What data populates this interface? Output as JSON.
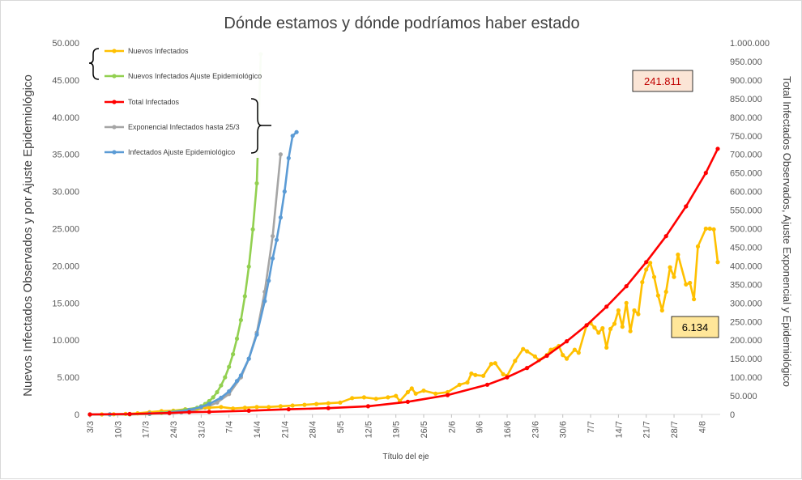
{
  "chart_data": {
    "type": "line",
    "title": "Dónde estamos y dónde podríamos haber estado",
    "xlabel": "Título del eje",
    "ylabel_left": "Nuevos Infectados Observados y por Ajuste Epidemiológico",
    "ylabel_right": "Total Infectados Observados, Ajuste Exponencial y Epidemiológico",
    "x_start": "3/3",
    "x_end": "8/8",
    "ylim_left": [
      0,
      50000
    ],
    "ylim_right": [
      0,
      1000000
    ],
    "yticks_left": [
      "0",
      "5.000",
      "10.000",
      "15.000",
      "20.000",
      "25.000",
      "30.000",
      "35.000",
      "40.000",
      "45.000",
      "50.000"
    ],
    "yticks_right": [
      "0",
      "50.000",
      "100.000",
      "150.000",
      "200.000",
      "250.000",
      "300.000",
      "350.000",
      "400.000",
      "450.000",
      "500.000",
      "550.000",
      "600.000",
      "650.000",
      "700.000",
      "750.000",
      "800.000",
      "850.000",
      "900.000",
      "950.000",
      "1.000.000"
    ],
    "xticks": [
      "3/3",
      "10/3",
      "17/3",
      "24/3",
      "31/3",
      "7/4",
      "14/4",
      "21/4",
      "28/4",
      "5/5",
      "12/5",
      "19/5",
      "26/5",
      "2/6",
      "9/6",
      "16/6",
      "23/6",
      "30/6",
      "7/7",
      "14/7",
      "21/7",
      "28/7",
      "4/8"
    ],
    "grid": false,
    "legend": [
      {
        "name": "Nuevos Infectados",
        "color": "#FFC000"
      },
      {
        "name": "Nuevos Infectados Ajuste Epidemiológico",
        "color": "#92D050"
      },
      {
        "name": "Total Infectados",
        "color": "#FF0000"
      },
      {
        "name": "Exponencial Infectados hasta 25/3",
        "color": "#A5A5A5"
      },
      {
        "name": "Infectados Ajuste Epidemiológico",
        "color": "#5B9BD5"
      }
    ],
    "annotations": [
      {
        "text": "241.811",
        "color": "#C00000",
        "background": "#FBE5D6"
      },
      {
        "text": "6.134",
        "color": "#000000",
        "background": "#FFE699"
      }
    ],
    "series": [
      {
        "name": "Nuevos Infectados",
        "axis": "left",
        "color": "#FFC000",
        "x": [
          0,
          3,
          6,
          9,
          12,
          15,
          18,
          21,
          24,
          27,
          30,
          33,
          36,
          39,
          42,
          45,
          48,
          51,
          54,
          57,
          60,
          63,
          66,
          69,
          72,
          75,
          77,
          78,
          80,
          81,
          82,
          84,
          87,
          90,
          93,
          95,
          96,
          97,
          99,
          101,
          102,
          104,
          105,
          107,
          109,
          110,
          112,
          113,
          115,
          116,
          118,
          119,
          120,
          122,
          123,
          125,
          126,
          127,
          128,
          129,
          130,
          131,
          132,
          133,
          134,
          135,
          136,
          137,
          138,
          139,
          140,
          141,
          142,
          143,
          144,
          145,
          146,
          147,
          148,
          150,
          151,
          152,
          153,
          155,
          156,
          157,
          158
        ],
        "y": [
          0,
          5,
          20,
          60,
          150,
          300,
          450,
          500,
          700,
          800,
          900,
          1000,
          800,
          900,
          1000,
          1000,
          1100,
          1200,
          1300,
          1400,
          1500,
          1600,
          2200,
          2300,
          2100,
          2300,
          2500,
          1800,
          3000,
          3500,
          2800,
          3200,
          2800,
          3000,
          4000,
          4300,
          5500,
          5300,
          5200,
          6800,
          6900,
          5400,
          5200,
          7200,
          8800,
          8500,
          7800,
          7300,
          8000,
          8700,
          9200,
          8000,
          7500,
          8700,
          8300,
          12000,
          12300,
          11700,
          11000,
          11600,
          9000,
          11500,
          12200,
          14000,
          11800,
          15000,
          11200,
          14000,
          13500,
          17800,
          19500,
          20400,
          18500,
          16000,
          14000,
          16500,
          19800,
          18500,
          21500,
          17500,
          17700,
          15500,
          22600,
          25000,
          25000,
          24900,
          20500
        ]
      },
      {
        "name": "Nuevos Infectados Ajuste Epidemiológico",
        "axis": "left",
        "color": "#92D050",
        "x": [
          0,
          5,
          10,
          15,
          18,
          21,
          24,
          27,
          28,
          29,
          30,
          31,
          32,
          33,
          34,
          35,
          36,
          37,
          38,
          39,
          40,
          41,
          42,
          43
        ],
        "y": [
          0,
          5,
          15,
          80,
          200,
          400,
          650,
          900,
          1100,
          1400,
          1800,
          2300,
          3000,
          3900,
          5000,
          6400,
          8100,
          10200,
          12700,
          15900,
          19900,
          24900,
          31100,
          48500
        ]
      },
      {
        "name": "Total Infectados",
        "axis": "right",
        "color": "#FF0000",
        "x": [
          0,
          10,
          20,
          25,
          30,
          40,
          50,
          60,
          70,
          80,
          90,
          100,
          105,
          110,
          115,
          120,
          125,
          130,
          135,
          140,
          145,
          150,
          155,
          158
        ],
        "y": [
          0,
          1000,
          4000,
          6000,
          7000,
          10000,
          14000,
          17000,
          22000,
          34000,
          52000,
          80000,
          100000,
          125000,
          158000,
          197000,
          240000,
          290000,
          345000,
          410000,
          480000,
          560000,
          650000,
          715000
        ]
      },
      {
        "name": "Exponencial Infectados hasta 25/3",
        "axis": "right",
        "color": "#A5A5A5",
        "x": [
          0,
          5,
          10,
          15,
          20,
          23,
          26,
          29,
          32,
          35,
          38,
          40,
          42,
          44,
          46,
          48
        ],
        "y": [
          0,
          50,
          300,
          1200,
          3000,
          5500,
          10000,
          18000,
          32000,
          55000,
          100000,
          150000,
          220000,
          330000,
          480000,
          700000
        ]
      },
      {
        "name": "Infectados Ajuste Epidemiológico",
        "axis": "right",
        "color": "#5B9BD5",
        "x": [
          0,
          5,
          10,
          15,
          20,
          25,
          28,
          30,
          33,
          35,
          37,
          38,
          40,
          42,
          44,
          45,
          46,
          47,
          48,
          49,
          50,
          51,
          52
        ],
        "y": [
          0,
          300,
          1000,
          2500,
          5000,
          12000,
          20000,
          28000,
          45000,
          62000,
          90000,
          105000,
          150000,
          215000,
          305000,
          360000,
          420000,
          470000,
          530000,
          600000,
          690000,
          750000,
          760000
        ]
      }
    ]
  }
}
